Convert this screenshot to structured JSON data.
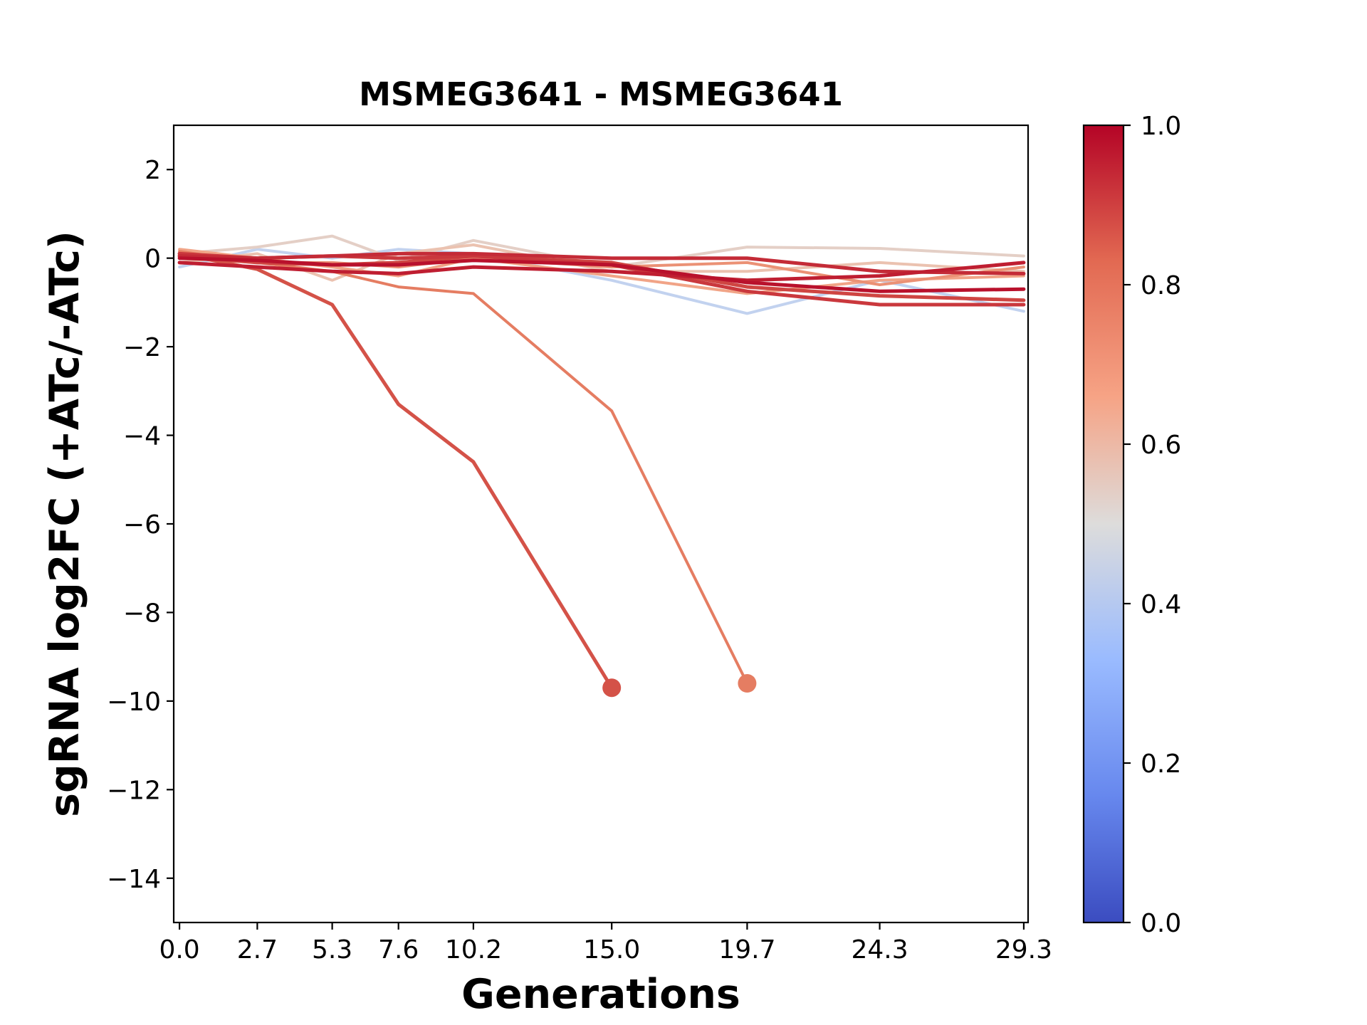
{
  "chart_data": {
    "type": "line",
    "title": "MSMEG3641 - MSMEG3641",
    "xlabel": "Generations",
    "ylabel": "sgRNA log2FC (+ATc/-ATc)",
    "x_ticks": [
      "0.0",
      "2.7",
      "5.3",
      "7.6",
      "10.2",
      "15.0",
      "19.7",
      "24.3",
      "29.3"
    ],
    "y_ticks": [
      "2",
      "0",
      "−2",
      "−4",
      "−6",
      "−8",
      "−10",
      "−12",
      "−14"
    ],
    "xlim": [
      -0.2,
      29.45
    ],
    "ylim": [
      -15,
      3
    ],
    "colorbar": {
      "ticks": [
        "0.0",
        "0.2",
        "0.4",
        "0.6",
        "0.8",
        "1.0"
      ],
      "range": [
        0,
        1
      ],
      "colormap": "coolwarm",
      "colors": [
        "#3b4cc0",
        "#7396f5",
        "#b0cbfc",
        "#dddcdb",
        "#f5b194",
        "#e17055",
        "#b40426"
      ]
    },
    "series": [
      {
        "color_value": 0.4,
        "x": [
          0.0,
          2.7,
          5.3,
          7.6,
          10.2,
          15.0,
          19.7,
          24.3,
          29.3
        ],
        "y": [
          -0.2,
          0.2,
          0.0,
          0.2,
          0.1,
          -0.5,
          -1.25,
          -0.5,
          -1.2
        ]
      },
      {
        "color_value": 0.55,
        "x": [
          0.0,
          2.7,
          5.3,
          7.6,
          10.2,
          15.0,
          19.7,
          24.3,
          29.3
        ],
        "y": [
          0.1,
          0.25,
          0.5,
          -0.05,
          0.4,
          -0.2,
          0.25,
          0.22,
          0.05
        ]
      },
      {
        "color_value": 0.6,
        "x": [
          0.0,
          2.7,
          5.3,
          7.6,
          10.2,
          15.0,
          19.7,
          24.3,
          29.3
        ],
        "y": [
          -0.1,
          0.1,
          -0.5,
          0.1,
          0.3,
          -0.3,
          -0.3,
          -0.1,
          -0.3
        ]
      },
      {
        "color_value": 0.7,
        "x": [
          0.0,
          2.7,
          5.3,
          7.6,
          10.2,
          15.0,
          19.7,
          24.3,
          29.3
        ],
        "y": [
          0.2,
          0.0,
          -0.2,
          -0.4,
          0.0,
          -0.4,
          -0.8,
          -0.5,
          -0.4
        ]
      },
      {
        "color_value": 0.75,
        "x": [
          0.0,
          2.7,
          5.3,
          7.6,
          10.2,
          15.0,
          19.7,
          24.3,
          29.3
        ],
        "y": [
          0.0,
          -0.1,
          -0.1,
          -0.2,
          0.0,
          -0.2,
          -0.1,
          -0.6,
          -0.2
        ]
      },
      {
        "color_value": 0.8,
        "x": [
          0.0,
          2.7,
          5.3,
          7.6,
          10.2,
          15.0,
          19.7
        ],
        "y": [
          0.15,
          -0.1,
          -0.3,
          -0.65,
          -0.8,
          -3.45,
          -9.6
        ]
      },
      {
        "color_value": 0.88,
        "x": [
          0.0,
          2.7,
          5.3,
          7.6,
          10.2,
          15.0
        ],
        "y": [
          0.1,
          -0.25,
          -1.05,
          -3.3,
          -4.6,
          -9.7
        ]
      },
      {
        "color_value": 0.9,
        "x": [
          0.0,
          2.7,
          5.3,
          7.6,
          10.2,
          15.0,
          19.7,
          24.3,
          29.3
        ],
        "y": [
          0.05,
          -0.1,
          -0.15,
          -0.1,
          0.05,
          -0.1,
          -0.65,
          -0.85,
          -0.95
        ]
      },
      {
        "color_value": 0.92,
        "x": [
          0.0,
          2.7,
          5.3,
          7.6,
          10.2,
          15.0,
          19.7,
          24.3,
          29.3
        ],
        "y": [
          0.1,
          0.0,
          0.05,
          0.0,
          0.05,
          -0.15,
          -0.75,
          -1.05,
          -1.05
        ]
      },
      {
        "color_value": 0.94,
        "x": [
          0.0,
          2.7,
          5.3,
          7.6,
          10.2,
          15.0,
          19.7,
          24.3,
          29.3
        ],
        "y": [
          0.05,
          0.0,
          0.05,
          0.1,
          0.1,
          0.0,
          0.0,
          -0.3,
          -0.35
        ]
      },
      {
        "color_value": 0.96,
        "x": [
          0.0,
          2.7,
          5.3,
          7.6,
          10.2,
          15.0,
          19.7,
          24.3,
          29.3
        ],
        "y": [
          -0.1,
          -0.2,
          -0.3,
          -0.35,
          -0.2,
          -0.3,
          -0.5,
          -0.4,
          -0.1
        ]
      },
      {
        "color_value": 0.98,
        "x": [
          0.0,
          2.7,
          5.3,
          7.6,
          10.2,
          15.0,
          19.7,
          24.3,
          29.3
        ],
        "y": [
          0.0,
          -0.05,
          -0.15,
          -0.15,
          -0.05,
          -0.15,
          -0.55,
          -0.75,
          -0.7
        ]
      }
    ],
    "end_markers": [
      {
        "x": 15.0,
        "y": -9.7,
        "color_value": 0.88
      },
      {
        "x": 19.7,
        "y": -9.6,
        "color_value": 0.8
      }
    ]
  }
}
